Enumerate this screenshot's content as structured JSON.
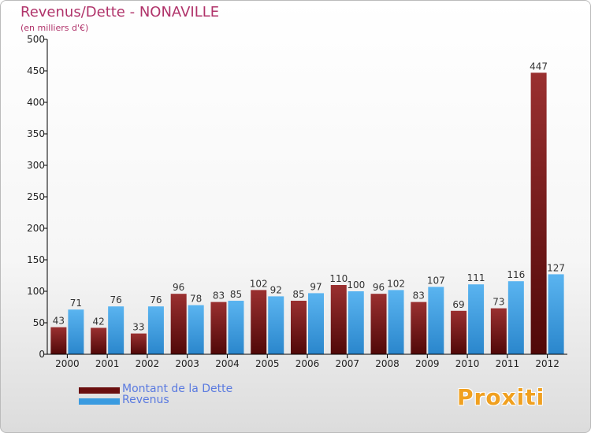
{
  "header": {
    "title": "Revenus/Dette - NONAVILLE",
    "subtitle": "(en milliers d'€)"
  },
  "legend": {
    "items": [
      {
        "label": "Montant de la Dette",
        "color": "#6a0f0f"
      },
      {
        "label": "Revenus",
        "color": "#3a9be0"
      }
    ]
  },
  "logo": {
    "text": "Proxiti"
  },
  "colors": {
    "title": "#b0336a",
    "debt": "#6a0f0f",
    "revenue": "#3a9be0",
    "axis": "#000000",
    "grid": "#dddddd"
  },
  "chart_data": {
    "type": "bar",
    "title": "Revenus/Dette - NONAVILLE",
    "subtitle": "(en milliers d'€)",
    "categories": [
      "2000",
      "2001",
      "2002",
      "2003",
      "2004",
      "2005",
      "2006",
      "2007",
      "2008",
      "2009",
      "2010",
      "2011",
      "2012"
    ],
    "series": [
      {
        "name": "Montant de la Dette",
        "color": "#6a0f0f",
        "values": [
          43,
          42,
          33,
          96,
          83,
          102,
          85,
          110,
          96,
          83,
          69,
          73,
          447
        ]
      },
      {
        "name": "Revenus",
        "color": "#3a9be0",
        "values": [
          71,
          76,
          76,
          78,
          85,
          92,
          97,
          100,
          102,
          107,
          111,
          116,
          127
        ]
      }
    ],
    "ylim": [
      0,
      500
    ],
    "yticks": [
      0,
      50,
      100,
      150,
      200,
      250,
      300,
      350,
      400,
      450,
      500
    ],
    "grid": false,
    "legend_position": "bottom-left"
  }
}
